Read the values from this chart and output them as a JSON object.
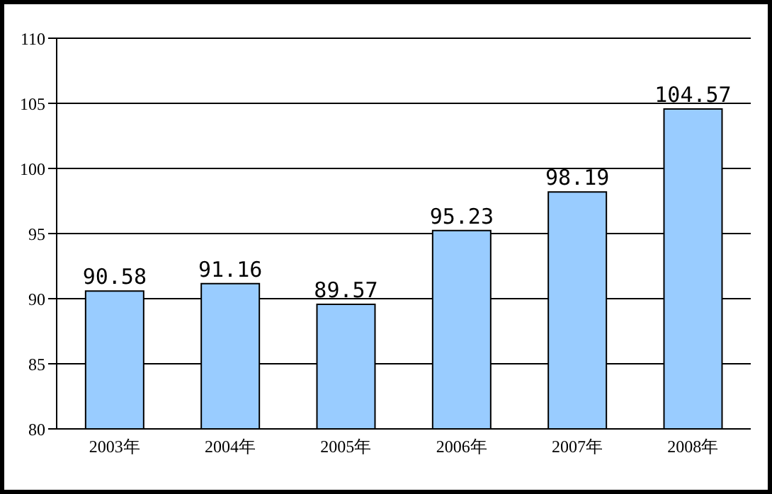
{
  "chart_data": {
    "type": "bar",
    "categories": [
      "2003年",
      "2004年",
      "2005年",
      "2006年",
      "2007年",
      "2008年"
    ],
    "values": [
      90.58,
      91.16,
      89.57,
      95.23,
      98.19,
      104.57
    ],
    "color": "#99ccff",
    "ylim": [
      80,
      110
    ],
    "yticks": [
      80,
      85,
      90,
      95,
      100,
      105,
      110
    ],
    "grid": "y",
    "data_labels": true
  }
}
